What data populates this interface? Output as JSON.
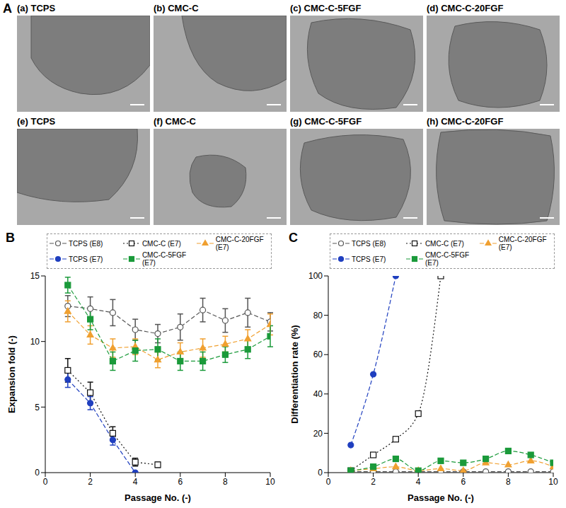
{
  "image_panels": {
    "label": "A",
    "images": [
      "(a) TCPS",
      "(b) CMC-C",
      "(c) CMC-C-5FGF",
      "(d) CMC-C-20FGF",
      "(e) TCPS",
      "(f) CMC-C",
      "(g) CMC-C-5FGF",
      "(h) CMC-C-20FGF"
    ]
  },
  "chart_data": [
    {
      "type": "line",
      "label": "B",
      "x_label": "Passage No. (-)",
      "y_label": "Expansion fold (-)",
      "xlim": [
        0,
        10
      ],
      "xticks": [
        0,
        2,
        4,
        6,
        8,
        10
      ],
      "ylim": [
        0,
        15
      ],
      "yticks": [
        0,
        5,
        10,
        15
      ],
      "legend": "top",
      "series": [
        {
          "name": "TCPS (E8)",
          "color": "#555555",
          "marker": "circle_open",
          "line_style": "dashed",
          "x": [
            1,
            2,
            3,
            4,
            5,
            6,
            7,
            8,
            9,
            10
          ],
          "values": [
            12.7,
            12.5,
            12.2,
            10.9,
            10.6,
            11.1,
            12.4,
            11.6,
            12.2,
            11.5
          ],
          "errors": [
            0.8,
            0.9,
            1.0,
            0.8,
            0.7,
            1.0,
            0.9,
            0.9,
            1.1,
            0.7
          ]
        },
        {
          "name": "CMC-C (E7)",
          "color": "#111111",
          "marker": "square_open",
          "line_style": "dotted",
          "x": [
            1,
            2,
            3,
            4,
            5
          ],
          "values": [
            7.8,
            6.1,
            3.0,
            0.8,
            0.6
          ],
          "errors": [
            0.9,
            0.8,
            0.5,
            0.3,
            0.2
          ]
        },
        {
          "name": "CMC-C-20FGF (E7)",
          "color": "#f0a030",
          "marker": "triangle",
          "line_style": "dashed",
          "x": [
            1,
            2,
            3,
            4,
            5,
            6,
            7,
            8,
            9,
            10
          ],
          "values": [
            12.3,
            10.5,
            9.5,
            9.6,
            8.6,
            9.2,
            9.5,
            9.8,
            10.2,
            11.3
          ],
          "errors": [
            0.8,
            0.7,
            0.7,
            0.6,
            0.6,
            0.7,
            0.7,
            0.6,
            0.7,
            0.8
          ]
        },
        {
          "name": "TCPS (E7)",
          "color": "#1f3fbf",
          "marker": "circle",
          "line_style": "dashed",
          "x": [
            1,
            2,
            3,
            4
          ],
          "values": [
            7.1,
            5.3,
            2.5,
            0
          ],
          "errors": [
            0.6,
            0.5,
            0.4,
            0
          ]
        },
        {
          "name": "CMC-C-5FGF (E7)",
          "color": "#1a9a3a",
          "marker": "square",
          "line_style": "dashed",
          "x": [
            1,
            2,
            3,
            4,
            5,
            6,
            7,
            8,
            9,
            10
          ],
          "values": [
            14.3,
            11.7,
            8.5,
            9.3,
            9.4,
            8.5,
            8.5,
            9.0,
            9.4,
            10.4
          ],
          "errors": [
            0.6,
            0.8,
            0.7,
            0.8,
            0.8,
            0.7,
            0.7,
            0.6,
            0.7,
            0.8
          ]
        }
      ]
    },
    {
      "type": "line",
      "label": "C",
      "x_label": "Passage No. (-)",
      "y_label": "Differentiation rate (%)",
      "xlim": [
        0,
        10
      ],
      "xticks": [
        0,
        2,
        4,
        6,
        8,
        10
      ],
      "ylim": [
        0,
        100
      ],
      "yticks": [
        0,
        20,
        40,
        60,
        80,
        100
      ],
      "legend": "top",
      "series": [
        {
          "name": "TCPS (E8)",
          "color": "#555555",
          "marker": "circle_open",
          "line_style": "dashed",
          "x": [
            1,
            2,
            3,
            4,
            5,
            6,
            7,
            8,
            9,
            10
          ],
          "values": [
            0.5,
            0.5,
            0.5,
            0.5,
            0.5,
            0.5,
            0.5,
            0.5,
            0.5,
            0.5
          ]
        },
        {
          "name": "CMC-C (E7)",
          "color": "#111111",
          "marker": "square_open",
          "line_style": "dotted",
          "x": [
            1,
            2,
            3,
            4,
            5
          ],
          "values": [
            1,
            9,
            17,
            30,
            100
          ]
        },
        {
          "name": "CMC-C-20FGF (E7)",
          "color": "#f0a030",
          "marker": "triangle",
          "line_style": "dashed",
          "x": [
            1,
            2,
            3,
            4,
            5,
            6,
            7,
            8,
            9,
            10
          ],
          "values": [
            1,
            2,
            3,
            1,
            2,
            1,
            5,
            4,
            6,
            3
          ]
        },
        {
          "name": "TCPS (E7)",
          "color": "#1f3fbf",
          "marker": "circle",
          "line_style": "dashed",
          "x": [
            1,
            2,
            3
          ],
          "values": [
            14,
            50,
            100
          ]
        },
        {
          "name": "CMC-C-5FGF (E7)",
          "color": "#1a9a3a",
          "marker": "square",
          "line_style": "dashed",
          "x": [
            1,
            2,
            3,
            4,
            5,
            6,
            7,
            8,
            9,
            10
          ],
          "values": [
            1,
            3,
            7,
            1,
            6,
            5,
            7,
            11,
            9,
            5
          ]
        }
      ]
    }
  ]
}
